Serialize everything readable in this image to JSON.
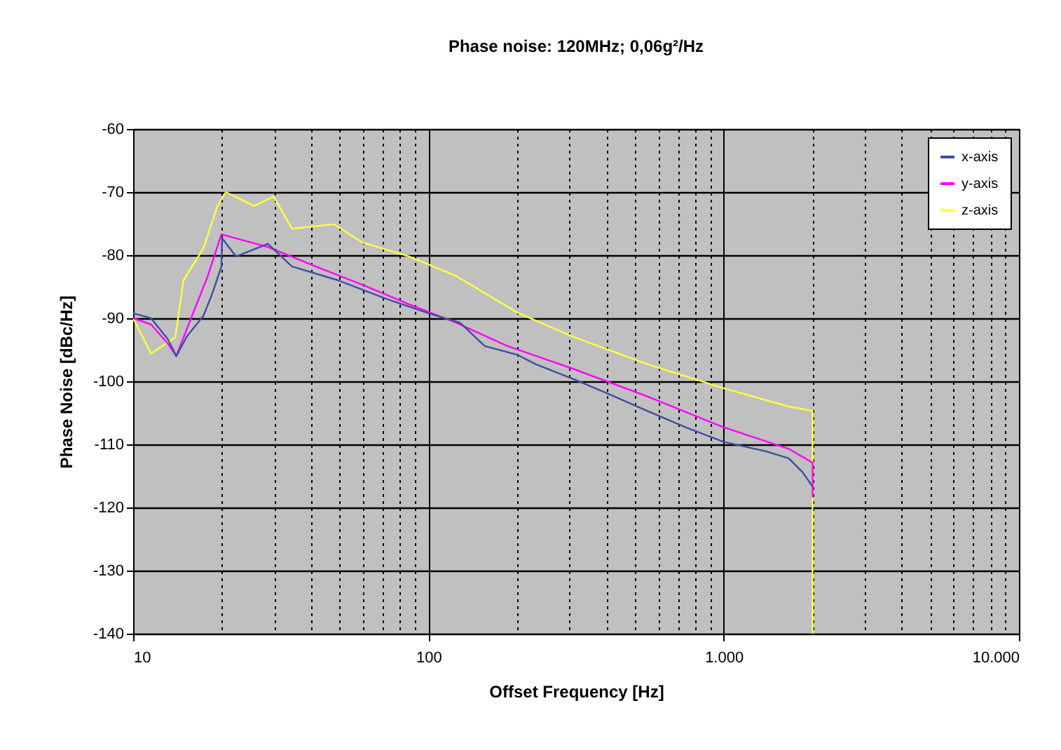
{
  "chart_data": {
    "type": "line",
    "title": "Phase noise: 120MHz; 0,06g²/Hz",
    "xlabel": "Offset Frequency [Hz]",
    "ylabel": "Phase Noise [dBc/Hz]",
    "log": "x",
    "grid": true,
    "legend": "top right",
    "marker": "none",
    "line_style": "solid",
    "xlim": [
      10,
      10000
    ],
    "ylim": [
      -140,
      -60
    ],
    "xticks": [
      10,
      {
        "value": 20,
        "label": null
      },
      {
        "value": 30,
        "label": null
      },
      {
        "value": 40,
        "label": null
      },
      {
        "value": 50,
        "label": null
      },
      {
        "value": 60,
        "label": null
      },
      {
        "value": 70,
        "label": null
      },
      {
        "value": 80,
        "label": null
      },
      {
        "value": 90,
        "label": null
      },
      100,
      {
        "value": 200,
        "label": null
      },
      {
        "value": 300,
        "label": null
      },
      {
        "value": 400,
        "label": null
      },
      {
        "value": 500,
        "label": null
      },
      {
        "value": 600,
        "label": null
      },
      {
        "value": 700,
        "label": null
      },
      {
        "value": 800,
        "label": null
      },
      {
        "value": 900,
        "label": null
      },
      {
        "value": 1000,
        "label": "1.000"
      },
      {
        "value": 2000,
        "label": null
      },
      {
        "value": 3000,
        "label": null
      },
      {
        "value": 4000,
        "label": null
      },
      {
        "value": 5000,
        "label": null
      },
      {
        "value": 6000,
        "label": null
      },
      {
        "value": 7000,
        "label": null
      },
      {
        "value": 8000,
        "label": null
      },
      {
        "value": 9000,
        "label": null
      },
      {
        "value": 10000,
        "label": "10.000"
      }
    ],
    "yticks": [
      -140,
      -130,
      -120,
      -110,
      -100,
      -90,
      -80,
      -70,
      -60
    ],
    "series": [
      {
        "name": "x-axis",
        "color": "#3f4f9f",
        "x": [
          10,
          11.5,
          13.1,
          14,
          15.2,
          17.3,
          18.5,
          19.9,
          20,
          22.3,
          28.6,
          34.5,
          49.5,
          71.8,
          100,
          128,
          155,
          200,
          231,
          308,
          398,
          552,
          744,
          1000,
          1390,
          1660,
          1850,
          2000
        ],
        "values": [
          -89.2,
          -90,
          -93.3,
          -96,
          -92.9,
          -89.6,
          -86.2,
          -81.8,
          -77.3,
          -80.2,
          -78.2,
          -81.8,
          -84,
          -86.9,
          -89.2,
          -90.7,
          -94.4,
          -95.8,
          -97.3,
          -99.6,
          -101.8,
          -104.7,
          -107.3,
          -109.6,
          -111.1,
          -112.2,
          -114.4,
          -116.7
        ]
      },
      {
        "name": "y-axis",
        "color": "#ff00ff",
        "x": [
          10,
          11.5,
          13.1,
          14,
          15.5,
          17.9,
          19.9,
          28.6,
          41.5,
          59.8,
          86,
          124,
          185,
          308,
          552,
          1000,
          1660,
          2000,
          2000
        ],
        "values": [
          -90,
          -91,
          -94,
          -96,
          -90.7,
          -83.3,
          -76.7,
          -78.7,
          -81.8,
          -84.7,
          -87.8,
          -90.7,
          -94.4,
          -98,
          -102.4,
          -107.3,
          -110.7,
          -112.9,
          -118.4
        ]
      },
      {
        "name": "z-axis",
        "color": "#ffff40",
        "x": [
          10,
          11.5,
          13.9,
          14.8,
          17.3,
          19.3,
          20.6,
          25.7,
          29.9,
          34.5,
          47.9,
          59.8,
          86,
          124,
          200,
          308,
          552,
          1000,
          1660,
          2000,
          2000
        ],
        "values": [
          -90,
          -95.6,
          -93,
          -84,
          -78.9,
          -72.2,
          -70,
          -72.2,
          -70.7,
          -75.8,
          -75.1,
          -78,
          -80.2,
          -83.3,
          -89.1,
          -92.9,
          -97.3,
          -101.1,
          -104,
          -104.7,
          -140
        ]
      }
    ]
  }
}
